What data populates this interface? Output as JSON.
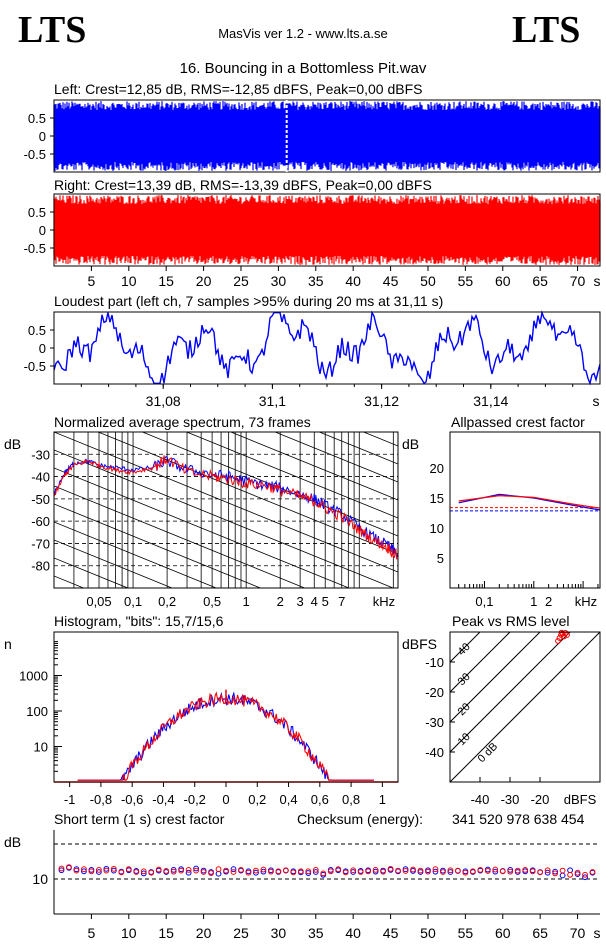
{
  "header": {
    "logo_left": "LTS",
    "logo_right": "LTS",
    "app": "MasVis ver 1.2 - www.lts.a.se",
    "file": "16. Bouncing in a Bottomless Pit.wav"
  },
  "colors": {
    "left": "#0000ff",
    "right": "#ff0000",
    "grid": "#000000"
  },
  "chart_data": [
    {
      "id": "left-waveform",
      "type": "area",
      "title": "Left: Crest=12,85 dB, RMS=-12,85 dBFS, Peak=0,00 dBFS",
      "yticks": [
        "0.5",
        "0",
        "-0.5"
      ],
      "ylim": [
        -1,
        1
      ],
      "xlim": [
        0,
        73
      ],
      "marker_s": 31.11
    },
    {
      "id": "right-waveform",
      "type": "area",
      "title": "Right: Crest=13,39 dB, RMS=-13,39 dBFS, Peak=0,00 dBFS",
      "yticks": [
        "0.5",
        "0",
        "-0.5"
      ],
      "ylim": [
        -1,
        1
      ],
      "xlim": [
        0,
        73
      ],
      "xticks": [
        "5",
        "10",
        "15",
        "20",
        "25",
        "30",
        "35",
        "40",
        "45",
        "50",
        "55",
        "60",
        "65",
        "70",
        "s"
      ]
    },
    {
      "id": "loudest-part",
      "type": "line",
      "title": "Loudest part (left  ch, 7 samples >95% during 20 ms at 31,11 s)",
      "yticks": [
        "0.5",
        "0",
        "-0.5"
      ],
      "ylim": [
        -1,
        1
      ],
      "xlim": [
        31.06,
        31.16
      ],
      "xticks": [
        "31,08",
        "31,1",
        "31,12",
        "31,14",
        "s"
      ]
    },
    {
      "id": "spectrum",
      "type": "line",
      "title": "Normalized average spectrum, 73 frames",
      "ylabel": "dB",
      "yticks": [
        "-30",
        "-40",
        "-50",
        "-60",
        "-70",
        "-80"
      ],
      "xticks": [
        "0,05",
        "0,1",
        "0,2",
        "0,5",
        "1",
        "2",
        "3",
        "4",
        "5",
        "7",
        "kHz"
      ],
      "xlim_khz": [
        0.02,
        22
      ],
      "ylim": [
        -90,
        -20
      ],
      "series": [
        {
          "name": "",
          "color": "#0000ff",
          "points": [
            [
              0.02,
              -48
            ],
            [
              0.025,
              -38
            ],
            [
              0.03,
              -34
            ],
            [
              0.04,
              -33
            ],
            [
              0.05,
              -35
            ],
            [
              0.07,
              -36
            ],
            [
              0.1,
              -37
            ],
            [
              0.15,
              -36
            ],
            [
              0.2,
              -33
            ],
            [
              0.3,
              -37
            ],
            [
              0.5,
              -39
            ],
            [
              0.7,
              -40
            ],
            [
              1,
              -42
            ],
            [
              1.5,
              -44
            ],
            [
              2,
              -45
            ],
            [
              3,
              -48
            ],
            [
              4,
              -50
            ],
            [
              5,
              -53
            ],
            [
              7,
              -57
            ],
            [
              10,
              -63
            ],
            [
              14,
              -68
            ],
            [
              18,
              -71
            ],
            [
              22,
              -75
            ]
          ]
        },
        {
          "name": "",
          "color": "#ff0000",
          "points": [
            [
              0.02,
              -49
            ],
            [
              0.025,
              -39
            ],
            [
              0.03,
              -35
            ],
            [
              0.04,
              -33
            ],
            [
              0.05,
              -35
            ],
            [
              0.07,
              -37
            ],
            [
              0.1,
              -38
            ],
            [
              0.15,
              -36
            ],
            [
              0.2,
              -32
            ],
            [
              0.3,
              -38
            ],
            [
              0.5,
              -40
            ],
            [
              0.7,
              -41
            ],
            [
              1,
              -43
            ],
            [
              1.5,
              -44
            ],
            [
              2,
              -46
            ],
            [
              3,
              -49
            ],
            [
              4,
              -51
            ],
            [
              5,
              -54
            ],
            [
              7,
              -58
            ],
            [
              10,
              -64
            ],
            [
              14,
              -69
            ],
            [
              18,
              -72
            ],
            [
              22,
              -76
            ]
          ]
        }
      ]
    },
    {
      "id": "allpassed-crest",
      "type": "line",
      "title": "Allpassed crest factor",
      "ylabel": "dB",
      "yticks": [
        "20",
        "15",
        "10",
        "5"
      ],
      "xticks": [
        "0,1",
        "1",
        "2",
        "kHz"
      ],
      "ylim": [
        0,
        26
      ],
      "series": [
        {
          "name": "",
          "color": "#0000ff",
          "points": [
            [
              0.03,
              14.2
            ],
            [
              0.2,
              15.6
            ],
            [
              1,
              15.0
            ],
            [
              6,
              13.8
            ],
            [
              22,
              13.0
            ]
          ]
        },
        {
          "name": "",
          "color": "#ff0000",
          "points": [
            [
              0.03,
              14.5
            ],
            [
              0.2,
              15.4
            ],
            [
              1,
              15.1
            ],
            [
              6,
              14.0
            ],
            [
              22,
              13.3
            ]
          ]
        }
      ],
      "ref_lines": [
        {
          "color": "#0000ff",
          "y": 12.85
        },
        {
          "color": "#ff0000",
          "y": 13.39
        }
      ]
    },
    {
      "id": "histogram",
      "type": "line",
      "title": "Histogram, \"bits\": 15,7/15,6",
      "ylabel": "n",
      "yticks": [
        "1000",
        "100",
        "10"
      ],
      "xticks": [
        "-1",
        "-0,8",
        "-0,6",
        "-0,4",
        "-0,2",
        "0",
        "0,2",
        "0,4",
        "0,6",
        "0,8",
        "1"
      ],
      "xlim": [
        -1.1,
        1.1
      ],
      "ylog": true
    },
    {
      "id": "peak-vs-rms",
      "type": "scatter",
      "title": "Peak vs RMS level",
      "ylabel": "dBFS",
      "yticks": [
        "-10",
        "-20",
        "-30",
        "-40"
      ],
      "xticks": [
        "-40",
        "-30",
        "-20",
        "dBFS"
      ],
      "diagonal_labels": [
        "40",
        "30",
        "20",
        "10",
        "0 dB"
      ],
      "xlim": [
        -50,
        0
      ],
      "ylim": [
        -50,
        0
      ],
      "points": [
        [
          -13,
          -1
        ],
        [
          -12.5,
          -0.5
        ],
        [
          -12,
          -1.5
        ],
        [
          -13.5,
          -2
        ],
        [
          -11.5,
          -0.3
        ],
        [
          -12.8,
          -0.2
        ],
        [
          -14,
          -3
        ],
        [
          -11,
          -1
        ]
      ]
    },
    {
      "id": "short-term-crest",
      "type": "scatter",
      "title": "Short term (1 s) crest factor",
      "checksum_label": "Checksum (energy):",
      "checksum": "341 520 978 638 454",
      "ylabel": "dB",
      "yticks": [
        "10"
      ],
      "xticks": [
        "5",
        "10",
        "15",
        "20",
        "25",
        "30",
        "35",
        "40",
        "45",
        "50",
        "55",
        "60",
        "65",
        "70",
        "s"
      ],
      "xlim": [
        0,
        73
      ],
      "ylim": [
        0,
        24
      ],
      "dashed_levels": [
        10,
        20
      ],
      "series": [
        {
          "name": "",
          "color": "#0000ff",
          "values": [
            12.5,
            13.2,
            12.8,
            12.2,
            12.6,
            12.0,
            12.9,
            12.4,
            12.1,
            12.5,
            12.3,
            11.6,
            12.0,
            12.4,
            12.0,
            12.6,
            12.8,
            11.8,
            13.0,
            12.4,
            12.0,
            11.5,
            12.1,
            12.8,
            12.4,
            12.2,
            11.8,
            12.1,
            12.5,
            12.0,
            12.4,
            12.2,
            11.9,
            11.7,
            12.0,
            11.2,
            12.6,
            12.5,
            12.2,
            12.0,
            12.3,
            12.5,
            12.1,
            12.4,
            12.6,
            12.2,
            12.8,
            12.3,
            12.0,
            12.5,
            12.1,
            12.4,
            12.0,
            12.3,
            12.2,
            12.0,
            12.4,
            12.7,
            12.1,
            12.3,
            12.6,
            12.0,
            12.2,
            12.5,
            12.0,
            11.8,
            12.1,
            11.0,
            12.5,
            11.4,
            10.5,
            11.8
          ]
        },
        {
          "name": "",
          "color": "#ff0000",
          "values": [
            13.0,
            13.4,
            12.4,
            12.8,
            12.2,
            12.6,
            12.4,
            12.9,
            11.9,
            12.8,
            12.0,
            12.2,
            11.8,
            12.7,
            12.3,
            12.1,
            12.4,
            12.6,
            12.4,
            12.0,
            11.7,
            12.8,
            12.4,
            12.0,
            12.6,
            11.8,
            12.4,
            12.7,
            12.1,
            12.2,
            12.5,
            11.9,
            12.2,
            12.2,
            12.6,
            11.6,
            12.2,
            12.8,
            11.9,
            12.5,
            12.0,
            12.2,
            12.6,
            12.1,
            12.9,
            12.4,
            12.3,
            12.7,
            12.4,
            12.1,
            12.8,
            12.0,
            12.5,
            12.4,
            11.8,
            12.2,
            12.6,
            12.3,
            12.7,
            12.2,
            12.1,
            12.4,
            12.6,
            12.2,
            11.9,
            12.5,
            11.6,
            12.4,
            11.2,
            11.8,
            11.2,
            12.0
          ]
        }
      ]
    }
  ]
}
